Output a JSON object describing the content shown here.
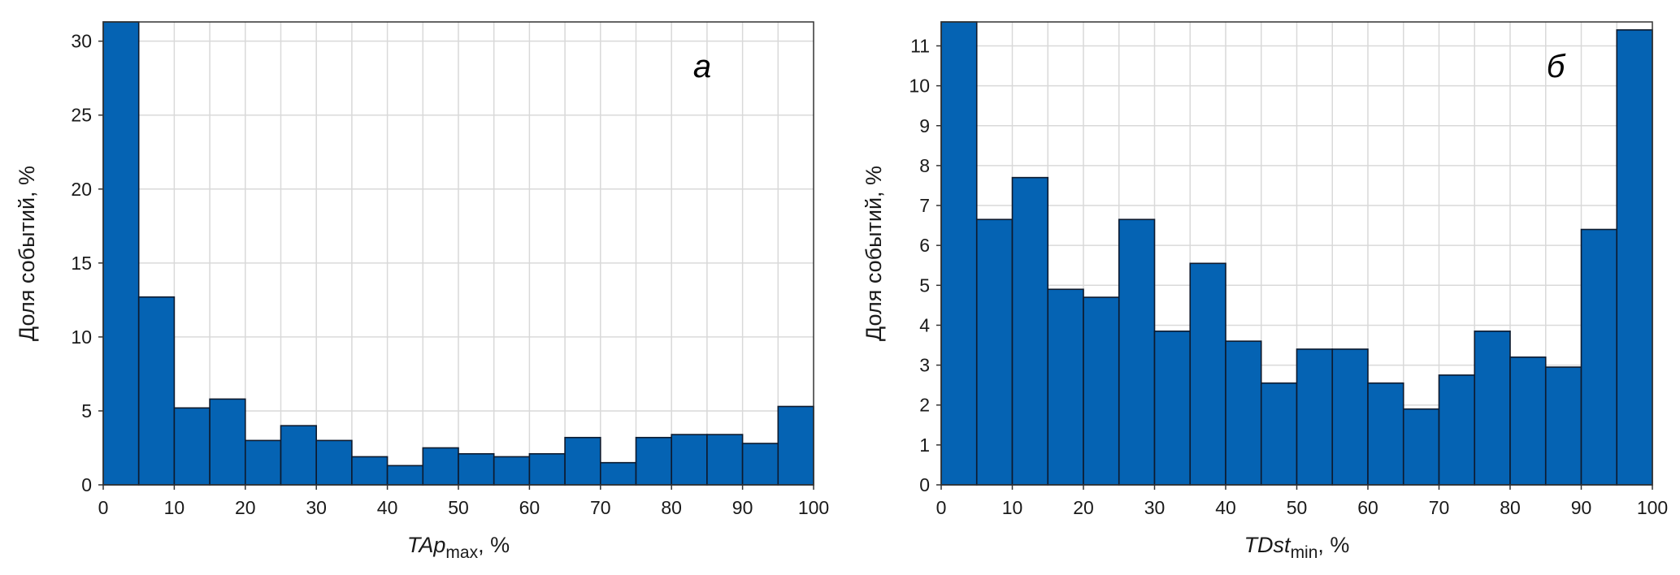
{
  "chart_data": [
    {
      "type": "bar",
      "panel_letter": "а",
      "ylabel": "Доля событий, %",
      "xlabel_main": "TAp",
      "xlabel_sub": "max",
      "xlabel_tail": ", %",
      "bin_edges": [
        0,
        5,
        10,
        15,
        20,
        25,
        30,
        35,
        40,
        45,
        50,
        55,
        60,
        65,
        70,
        75,
        80,
        85,
        90,
        95,
        100
      ],
      "values": [
        31.3,
        12.7,
        5.2,
        5.8,
        3.0,
        4.0,
        3.0,
        1.9,
        1.3,
        2.5,
        2.1,
        1.9,
        2.1,
        3.2,
        1.5,
        3.2,
        3.4,
        3.4,
        2.8,
        5.3
      ],
      "xlim": [
        0,
        100
      ],
      "ylim": [
        0,
        31.3
      ],
      "xticks": [
        "0",
        "10",
        "20",
        "30",
        "40",
        "50",
        "60",
        "70",
        "80",
        "90",
        "100"
      ],
      "yticks": [
        "0",
        "5",
        "10",
        "15",
        "20",
        "25",
        "30"
      ],
      "grid": true,
      "bar_color": "#0563B3"
    },
    {
      "type": "bar",
      "panel_letter": "б",
      "ylabel": "Доля событий, %",
      "xlabel_main": "TDst",
      "xlabel_sub": "min",
      "xlabel_tail": ", %",
      "bin_edges": [
        0,
        5,
        10,
        15,
        20,
        25,
        30,
        35,
        40,
        45,
        50,
        55,
        60,
        65,
        70,
        75,
        80,
        85,
        90,
        95,
        100
      ],
      "values": [
        11.6,
        6.65,
        7.7,
        4.9,
        4.7,
        6.65,
        3.85,
        5.55,
        3.6,
        2.55,
        3.4,
        3.4,
        2.55,
        1.9,
        2.75,
        3.85,
        3.2,
        2.95,
        6.4,
        11.4
      ],
      "xlim": [
        0,
        100
      ],
      "ylim": [
        0,
        11.6
      ],
      "xticks": [
        "0",
        "10",
        "20",
        "30",
        "40",
        "50",
        "60",
        "70",
        "80",
        "90",
        "100"
      ],
      "yticks": [
        "0",
        "1",
        "2",
        "3",
        "4",
        "5",
        "6",
        "7",
        "8",
        "9",
        "10",
        "11"
      ],
      "grid": true,
      "bar_color": "#0563B3"
    }
  ]
}
